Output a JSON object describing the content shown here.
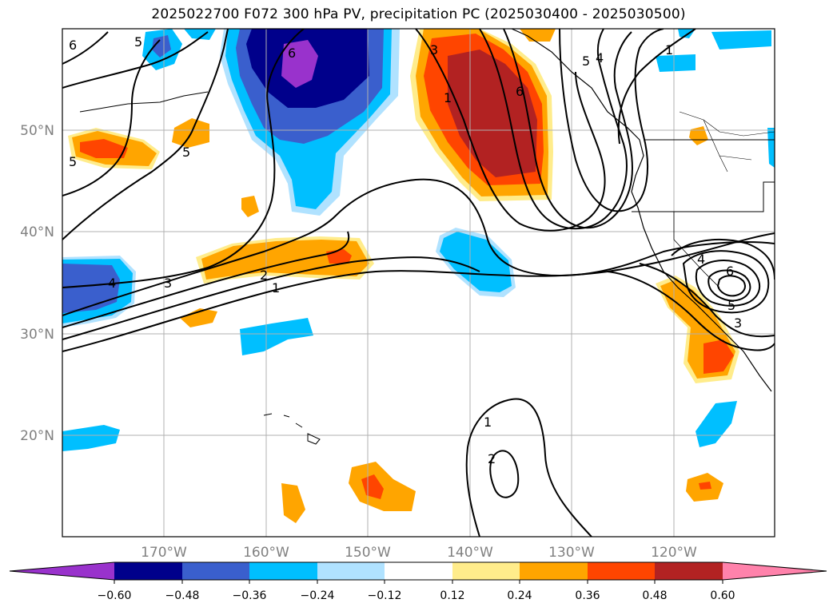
{
  "title": "2025022700 F072 300 hPa PV, precipitation PC (2025030400 - 2025030500)",
  "latitude_labels": [
    "50°N",
    "40°N",
    "30°N",
    "20°N"
  ],
  "longitude_labels": [
    "170°W",
    "160°W",
    "150°W",
    "140°W",
    "130°W",
    "120°W"
  ],
  "colorbar": {
    "tick_labels": [
      "−0.60",
      "−0.48",
      "−0.36",
      "−0.24",
      "−0.12",
      "0.12",
      "0.24",
      "0.36",
      "0.48",
      "0.60"
    ],
    "colors": [
      "#9932cc",
      "#00008b",
      "#3a5fcd",
      "#00bfff",
      "#b0e2ff",
      "#ffffff",
      "#ffec8b",
      "#ffa500",
      "#ff4500",
      "#b22222",
      "#ff82ab"
    ]
  },
  "contour_labels": [
    "6",
    "5",
    "5",
    "5",
    "6",
    "3",
    "1",
    "6",
    "5",
    "4",
    "1",
    "4",
    "3",
    "2",
    "1",
    "1",
    "2",
    "6",
    "5",
    "3",
    "4"
  ],
  "precip_colors": {
    "neg_strong": "#9932cc",
    "neg_dark": "#00008b",
    "neg_mid": "#3a5fcd",
    "neg_light": "#00bfff",
    "neg_pale": "#b0e2ff",
    "pos_pale": "#ffec8b",
    "pos_light": "#ffa500",
    "pos_mid": "#ff4500",
    "pos_dark": "#b22222"
  }
}
